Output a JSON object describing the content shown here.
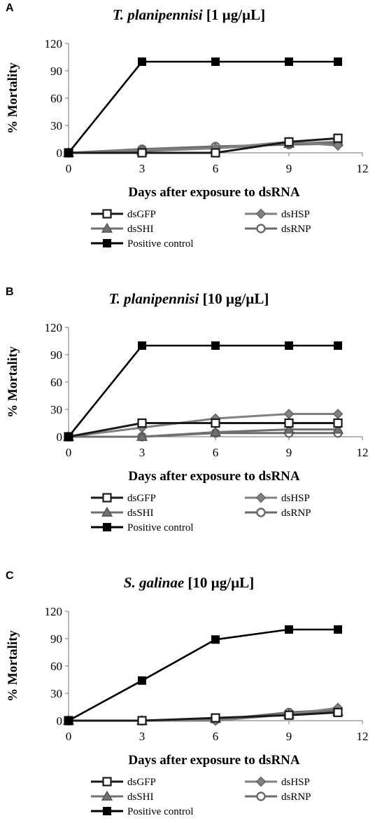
{
  "chart_data": [
    {
      "type": "line",
      "panel": "A",
      "title_species": "T. planipennisi",
      "title_conc": "[1 µg/µL]",
      "xlabel": "Days after exposure to dsRNA",
      "ylabel": "% Mortality",
      "xlim": [
        0,
        12
      ],
      "ylim": [
        0,
        120
      ],
      "xticks": [
        "0",
        "3",
        "6",
        "9",
        "12"
      ],
      "yticks": [
        "0",
        "30",
        "60",
        "90",
        "120"
      ],
      "grid": false,
      "legend_position": "bottom",
      "x": [
        0,
        3,
        6,
        9,
        11
      ],
      "series": [
        {
          "name": "dsGFP",
          "values": [
            0,
            0,
            0,
            12,
            16
          ],
          "marker": "square-open",
          "color": "#1a1a1a"
        },
        {
          "name": "dsHSP",
          "values": [
            0,
            3,
            5,
            12,
            8
          ],
          "marker": "diamond",
          "color": "#808080"
        },
        {
          "name": "dsSHI",
          "values": [
            0,
            2,
            5,
            10,
            12
          ],
          "marker": "triangle",
          "color": "#707070"
        },
        {
          "name": "dsRNP",
          "values": [
            0,
            4,
            7,
            9,
            10
          ],
          "marker": "circle-open",
          "color": "#6a6a6a"
        },
        {
          "name": "Positive control",
          "values": [
            0,
            100,
            100,
            100,
            100
          ],
          "marker": "square",
          "color": "#000000"
        }
      ]
    },
    {
      "type": "line",
      "panel": "B",
      "title_species": "T. planipennisi",
      "title_conc": "[10 µg/µL]",
      "xlabel": "Days after exposure to dsRNA",
      "ylabel": "% Mortality",
      "xlim": [
        0,
        12
      ],
      "ylim": [
        0,
        120
      ],
      "xticks": [
        "0",
        "3",
        "6",
        "9",
        "12"
      ],
      "yticks": [
        "0",
        "30",
        "60",
        "90",
        "120"
      ],
      "grid": false,
      "legend_position": "bottom",
      "x": [
        0,
        3,
        6,
        9,
        11
      ],
      "series": [
        {
          "name": "dsGFP",
          "values": [
            0,
            15,
            15,
            15,
            15
          ],
          "marker": "square-open",
          "color": "#1a1a1a"
        },
        {
          "name": "dsHSP",
          "values": [
            0,
            10,
            20,
            25,
            25
          ],
          "marker": "diamond",
          "color": "#808080"
        },
        {
          "name": "dsSHI",
          "values": [
            0,
            0,
            5,
            8,
            8
          ],
          "marker": "triangle",
          "color": "#707070"
        },
        {
          "name": "dsRNP",
          "values": [
            0,
            0,
            4,
            4,
            4
          ],
          "marker": "circle-open",
          "color": "#6a6a6a"
        },
        {
          "name": "Positive control",
          "values": [
            0,
            100,
            100,
            100,
            100
          ],
          "marker": "square",
          "color": "#000000"
        }
      ]
    },
    {
      "type": "line",
      "panel": "C",
      "title_species": "S. galinae",
      "title_conc": "[10 µg/µL]",
      "xlabel": "Days after exposure to dsRNA",
      "ylabel": "% Mortality",
      "xlim": [
        0,
        12
      ],
      "ylim": [
        0,
        120
      ],
      "xticks": [
        "0",
        "3",
        "6",
        "9",
        "12"
      ],
      "yticks": [
        "0",
        "30",
        "60",
        "90",
        "120"
      ],
      "grid": false,
      "legend_position": "bottom",
      "x": [
        0,
        3,
        6,
        9,
        11
      ],
      "series": [
        {
          "name": "dsGFP",
          "values": [
            0,
            0,
            3,
            6,
            9
          ],
          "marker": "square-open",
          "color": "#1a1a1a"
        },
        {
          "name": "dsHSP",
          "values": [
            0,
            0,
            0,
            7,
            14
          ],
          "marker": "diamond",
          "color": "#808080"
        },
        {
          "name": "dsSHI",
          "values": [
            0,
            0,
            2,
            7,
            10
          ],
          "marker": "triangle",
          "color": "#707070"
        },
        {
          "name": "dsRNP",
          "values": [
            0,
            0,
            1,
            9,
            12
          ],
          "marker": "circle-open",
          "color": "#6a6a6a"
        },
        {
          "name": "Positive control",
          "values": [
            0,
            44,
            89,
            100,
            100
          ],
          "marker": "square",
          "color": "#000000"
        }
      ]
    }
  ]
}
